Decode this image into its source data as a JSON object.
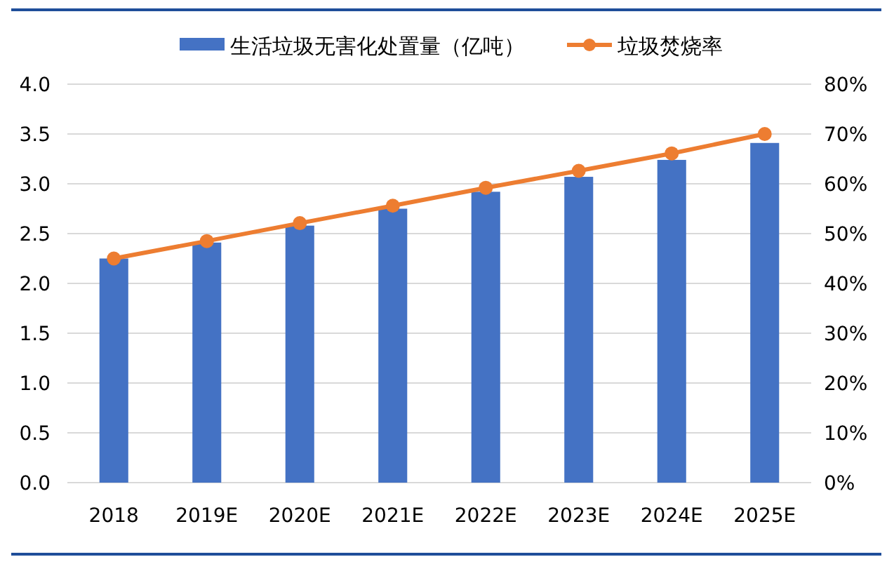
{
  "chart_data": {
    "type": "bar",
    "categories": [
      "2018",
      "2019E",
      "2020E",
      "2021E",
      "2022E",
      "2023E",
      "2024E",
      "2025E"
    ],
    "series": [
      {
        "name": "生活垃圾无害化处置量（亿吨）",
        "color": "#4472c4",
        "values": [
          2.25,
          2.41,
          2.58,
          2.75,
          2.92,
          3.07,
          3.24,
          3.41
        ]
      },
      {
        "name": "垃圾焚烧率",
        "type": "line",
        "axis": "y2",
        "color": "#ed7d31",
        "marker": "circle",
        "values": [
          45.0,
          48.5,
          52.1,
          55.6,
          59.2,
          62.6,
          66.1,
          70.0
        ]
      }
    ],
    "ylim": [
      0,
      4
    ],
    "yticks": [
      {
        "value": 0,
        "label": "0.0"
      },
      {
        "value": 0.5,
        "label": "0.5"
      },
      {
        "value": 1,
        "label": "1.0"
      },
      {
        "value": 1.5,
        "label": "1.5"
      },
      {
        "value": 2,
        "label": "2.0"
      },
      {
        "value": 2.5,
        "label": "2.5"
      },
      {
        "value": 3,
        "label": "3.0"
      },
      {
        "value": 3.5,
        "label": "3.5"
      },
      {
        "value": 4,
        "label": "4.0"
      }
    ],
    "y2lim": [
      0,
      80
    ],
    "y2ticks": [
      {
        "value": 0,
        "label": "0%"
      },
      {
        "value": 10,
        "label": "10%"
      },
      {
        "value": 20,
        "label": "20%"
      },
      {
        "value": 30,
        "label": "30%"
      },
      {
        "value": 40,
        "label": "40%"
      },
      {
        "value": 50,
        "label": "50%"
      },
      {
        "value": 60,
        "label": "60%"
      },
      {
        "value": 70,
        "label": "70%"
      },
      {
        "value": 80,
        "label": "80%"
      }
    ],
    "grid": "y",
    "legend": "top"
  }
}
